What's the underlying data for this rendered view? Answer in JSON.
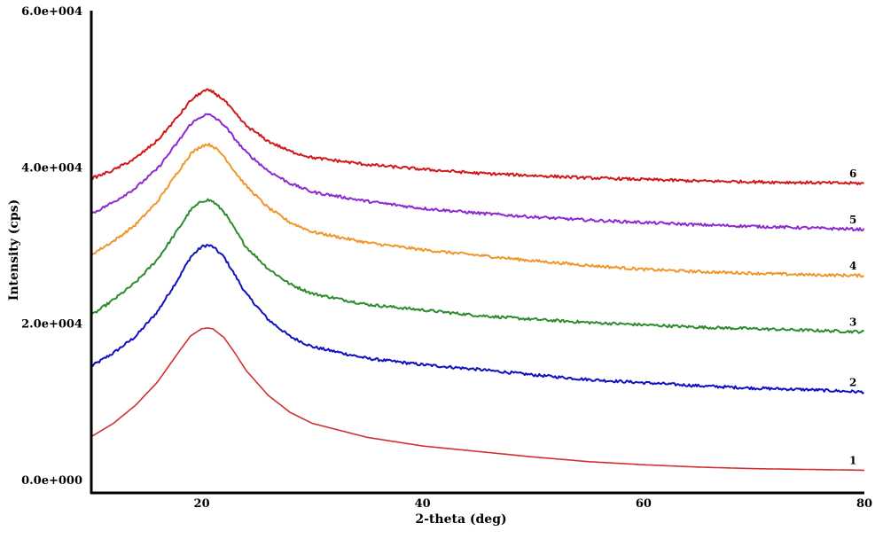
{
  "chart_data": {
    "type": "line",
    "title": "",
    "xlabel": "2-theta (deg)",
    "ylabel": "Intensity (cps)",
    "xlim": [
      10,
      80
    ],
    "ylim": [
      0,
      60000
    ],
    "x_ticks": [
      20,
      40,
      60,
      80
    ],
    "x_tick_labels": [
      "20",
      "40",
      "60",
      "80"
    ],
    "y_ticks": [
      0,
      20000,
      40000,
      60000
    ],
    "y_tick_labels": [
      "0.0e+000",
      "2.0e+004",
      "4.0e+004",
      "6.0e+004"
    ],
    "grid": false,
    "legend": "none",
    "x": [
      10,
      12,
      14,
      16,
      18,
      19,
      20,
      20.5,
      21,
      22,
      23,
      24,
      26,
      28,
      30,
      35,
      40,
      45,
      50,
      55,
      60,
      65,
      70,
      75,
      80
    ],
    "series": [
      {
        "name": "1",
        "color": "#d03030",
        "noisy": false,
        "values": [
          5500,
          7200,
          9500,
          12500,
          16500,
          18400,
          19300,
          19400,
          19300,
          18200,
          16200,
          14000,
          10800,
          8600,
          7200,
          5400,
          4300,
          3600,
          2900,
          2300,
          1900,
          1600,
          1400,
          1300,
          1200
        ]
      },
      {
        "name": "2",
        "color": "#1010c0",
        "noisy": true,
        "values": [
          14500,
          16200,
          18300,
          21500,
          26000,
          28500,
          29800,
          30000,
          29800,
          28500,
          26200,
          23800,
          20500,
          18300,
          17000,
          15500,
          14700,
          14100,
          13400,
          12800,
          12400,
          12000,
          11700,
          11500,
          11200
        ]
      },
      {
        "name": "3",
        "color": "#2c8c2c",
        "noisy": true,
        "values": [
          21000,
          23000,
          25200,
          28200,
          32300,
          34500,
          35600,
          35800,
          35600,
          34300,
          32000,
          29800,
          27000,
          25000,
          23800,
          22400,
          21700,
          21000,
          20500,
          20100,
          19800,
          19500,
          19300,
          19100,
          18900
        ]
      },
      {
        "name": "4",
        "color": "#f0962a",
        "noisy": true,
        "values": [
          28800,
          30500,
          32600,
          35600,
          39700,
          41700,
          42700,
          42900,
          42700,
          41400,
          39400,
          37600,
          34800,
          32900,
          31700,
          30300,
          29400,
          28700,
          28000,
          27400,
          26900,
          26600,
          26400,
          26200,
          26100
        ]
      },
      {
        "name": "5",
        "color": "#8b2ad0",
        "noisy": true,
        "values": [
          34000,
          35500,
          37300,
          39800,
          43500,
          45500,
          46500,
          46700,
          46500,
          45400,
          43600,
          41900,
          39500,
          37900,
          36800,
          35600,
          34700,
          34100,
          33600,
          33200,
          32900,
          32600,
          32400,
          32200,
          32000
        ]
      },
      {
        "name": "6",
        "color": "#d01818",
        "noisy": true,
        "values": [
          38500,
          39600,
          41100,
          43400,
          46700,
          48500,
          49600,
          49800,
          49600,
          48600,
          46900,
          45300,
          43300,
          42000,
          41200,
          40300,
          39700,
          39200,
          38900,
          38600,
          38400,
          38200,
          38100,
          38000,
          37900
        ]
      }
    ]
  }
}
